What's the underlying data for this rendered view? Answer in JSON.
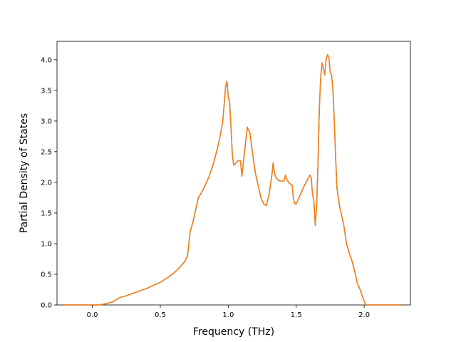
{
  "chart_data": {
    "type": "line",
    "xlabel": "Frequency (THz)",
    "ylabel": "Partial Density of States",
    "xlim": [
      -0.26,
      2.34
    ],
    "ylim": [
      0.0,
      4.3
    ],
    "xticks": [
      0.0,
      0.5,
      1.0,
      1.5,
      2.0
    ],
    "xtick_labels": [
      "0.0",
      "0.5",
      "1.0",
      "1.5",
      "2.0"
    ],
    "yticks": [
      0.0,
      0.5,
      1.0,
      1.5,
      2.0,
      2.5,
      3.0,
      3.5,
      4.0
    ],
    "ytick_labels": [
      "0.0",
      "0.5",
      "1.0",
      "1.5",
      "2.0",
      "2.5",
      "3.0",
      "3.5",
      "4.0"
    ],
    "grid": false,
    "series": [
      {
        "color": "#1f77b4",
        "x": [
          -0.21,
          0.05,
          0.1,
          0.15,
          0.18,
          0.2,
          0.25,
          0.3,
          0.35,
          0.4,
          0.45,
          0.5,
          0.55,
          0.6,
          0.65,
          0.68,
          0.7,
          0.72,
          0.74,
          0.76,
          0.78,
          0.8,
          0.83,
          0.86,
          0.89,
          0.92,
          0.94,
          0.96,
          0.98,
          0.99,
          1.0,
          1.01,
          1.02,
          1.03,
          1.04,
          1.05,
          1.07,
          1.09,
          1.1,
          1.11,
          1.12,
          1.14,
          1.16,
          1.18,
          1.2,
          1.22,
          1.24,
          1.26,
          1.28,
          1.3,
          1.32,
          1.33,
          1.34,
          1.35,
          1.37,
          1.39,
          1.41,
          1.42,
          1.43,
          1.45,
          1.46,
          1.47,
          1.48,
          1.49,
          1.5,
          1.52,
          1.54,
          1.56,
          1.58,
          1.6,
          1.61,
          1.62,
          1.63,
          1.64,
          1.65,
          1.66,
          1.67,
          1.68,
          1.69,
          1.7,
          1.71,
          1.72,
          1.73,
          1.74,
          1.75,
          1.76,
          1.77,
          1.78,
          1.79,
          1.8,
          1.81,
          1.82,
          1.83,
          1.85,
          1.87,
          1.89,
          1.91,
          1.93,
          1.95,
          1.97,
          1.99,
          2.01,
          2.03,
          2.05,
          2.06,
          2.08,
          2.15,
          2.27
        ],
        "y": [
          0.0,
          0.0,
          0.02,
          0.05,
          0.09,
          0.12,
          0.15,
          0.19,
          0.23,
          0.27,
          0.32,
          0.37,
          0.44,
          0.52,
          0.63,
          0.71,
          0.8,
          1.2,
          1.35,
          1.55,
          1.75,
          1.82,
          1.95,
          2.1,
          2.3,
          2.55,
          2.75,
          3.0,
          3.55,
          3.65,
          3.4,
          3.3,
          2.9,
          2.45,
          2.28,
          2.3,
          2.35,
          2.35,
          2.1,
          2.3,
          2.5,
          2.9,
          2.8,
          2.45,
          2.15,
          1.95,
          1.75,
          1.65,
          1.62,
          1.8,
          2.1,
          2.32,
          2.15,
          2.08,
          2.03,
          2.02,
          2.02,
          2.12,
          2.05,
          1.98,
          1.97,
          1.95,
          1.72,
          1.65,
          1.65,
          1.75,
          1.85,
          1.95,
          2.03,
          2.12,
          2.08,
          1.8,
          1.7,
          1.3,
          1.6,
          2.3,
          3.2,
          3.7,
          3.95,
          3.85,
          3.75,
          4.0,
          4.08,
          4.05,
          3.8,
          3.75,
          3.5,
          3.0,
          2.4,
          1.9,
          1.75,
          1.6,
          1.5,
          1.3,
          1.0,
          0.85,
          0.72,
          0.55,
          0.35,
          0.25,
          0.12,
          0.0,
          0.0,
          0.0,
          0.0,
          0.0,
          0.0,
          0.0
        ]
      },
      {
        "color": "#ff7f0e",
        "x": [
          -0.21,
          0.05,
          0.1,
          0.15,
          0.18,
          0.2,
          0.25,
          0.3,
          0.35,
          0.4,
          0.45,
          0.5,
          0.55,
          0.6,
          0.65,
          0.68,
          0.7,
          0.72,
          0.74,
          0.76,
          0.78,
          0.8,
          0.83,
          0.86,
          0.89,
          0.92,
          0.94,
          0.96,
          0.98,
          0.99,
          1.0,
          1.01,
          1.02,
          1.03,
          1.04,
          1.05,
          1.07,
          1.09,
          1.1,
          1.11,
          1.12,
          1.14,
          1.16,
          1.18,
          1.2,
          1.22,
          1.24,
          1.26,
          1.28,
          1.3,
          1.32,
          1.33,
          1.34,
          1.35,
          1.37,
          1.39,
          1.41,
          1.42,
          1.43,
          1.45,
          1.46,
          1.47,
          1.48,
          1.49,
          1.5,
          1.52,
          1.54,
          1.56,
          1.58,
          1.6,
          1.61,
          1.62,
          1.63,
          1.64,
          1.65,
          1.66,
          1.67,
          1.68,
          1.69,
          1.7,
          1.71,
          1.72,
          1.73,
          1.74,
          1.75,
          1.76,
          1.77,
          1.78,
          1.79,
          1.8,
          1.81,
          1.82,
          1.83,
          1.85,
          1.87,
          1.89,
          1.91,
          1.93,
          1.95,
          1.97,
          1.99,
          2.01,
          2.03,
          2.05,
          2.06,
          2.08,
          2.15,
          2.27
        ],
        "y": [
          0.0,
          0.0,
          0.02,
          0.05,
          0.09,
          0.12,
          0.15,
          0.19,
          0.23,
          0.27,
          0.32,
          0.37,
          0.44,
          0.52,
          0.63,
          0.71,
          0.8,
          1.2,
          1.35,
          1.55,
          1.75,
          1.82,
          1.95,
          2.1,
          2.3,
          2.55,
          2.75,
          3.0,
          3.55,
          3.65,
          3.4,
          3.3,
          2.9,
          2.45,
          2.28,
          2.3,
          2.35,
          2.35,
          2.1,
          2.3,
          2.5,
          2.9,
          2.8,
          2.45,
          2.15,
          1.95,
          1.75,
          1.65,
          1.62,
          1.8,
          2.1,
          2.32,
          2.15,
          2.08,
          2.03,
          2.02,
          2.02,
          2.12,
          2.05,
          1.98,
          1.97,
          1.95,
          1.72,
          1.65,
          1.65,
          1.75,
          1.85,
          1.95,
          2.03,
          2.12,
          2.08,
          1.8,
          1.7,
          1.3,
          1.6,
          2.3,
          3.2,
          3.7,
          3.95,
          3.85,
          3.75,
          4.0,
          4.08,
          4.05,
          3.8,
          3.75,
          3.5,
          3.0,
          2.4,
          1.9,
          1.75,
          1.6,
          1.5,
          1.3,
          1.0,
          0.85,
          0.72,
          0.55,
          0.35,
          0.25,
          0.12,
          0.0,
          0.0,
          0.0,
          0.0,
          0.0,
          0.0,
          0.0
        ]
      }
    ]
  }
}
